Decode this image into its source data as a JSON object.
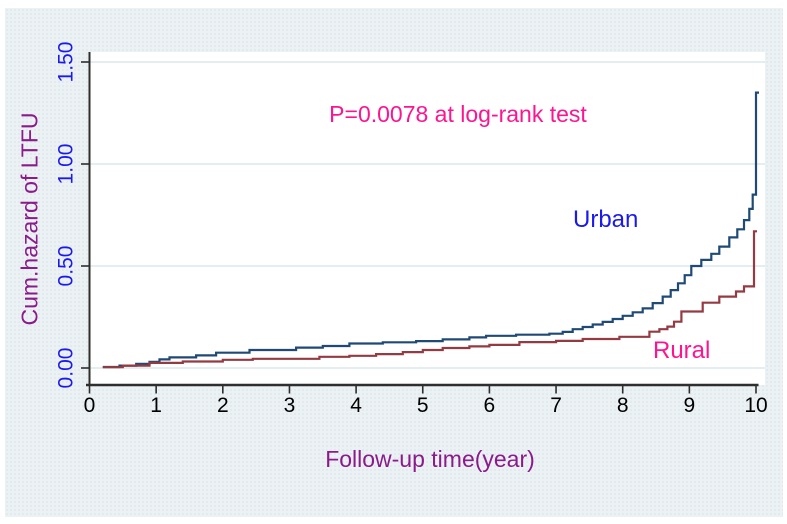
{
  "chart_data": {
    "type": "line",
    "line_style": "step-after",
    "annotation": "P=0.0078 at log-rank test",
    "xlabel": "Follow-up time(year)",
    "ylabel": "Cum.hazard of LTFU",
    "xlim": [
      0,
      10.2
    ],
    "ylim": [
      0,
      1.5
    ],
    "grid": "horizontal-at-y-ticks",
    "legend": "inline-text-labels",
    "x_ticks": {
      "values": [
        0,
        1,
        2,
        3,
        4,
        5,
        6,
        7,
        8,
        9,
        10
      ],
      "labels": [
        "0",
        "1",
        "2",
        "3",
        "4",
        "5",
        "6",
        "7",
        "8",
        "9",
        "10"
      ]
    },
    "y_ticks": {
      "values": [
        0,
        0.5,
        1.0,
        1.5
      ],
      "labels": [
        "0.00",
        "0.50",
        "1.00",
        "1.50"
      ]
    },
    "series": [
      {
        "name": "Urban",
        "color": "#1f4a75",
        "label_color": "#1a1aee",
        "points": [
          [
            0.2,
            0.005
          ],
          [
            0.45,
            0.012
          ],
          [
            0.7,
            0.02
          ],
          [
            0.9,
            0.03
          ],
          [
            1.05,
            0.042
          ],
          [
            1.2,
            0.052
          ],
          [
            1.6,
            0.062
          ],
          [
            1.9,
            0.075
          ],
          [
            2.4,
            0.088
          ],
          [
            3.1,
            0.1
          ],
          [
            3.5,
            0.108
          ],
          [
            3.9,
            0.12
          ],
          [
            4.4,
            0.126
          ],
          [
            4.9,
            0.132
          ],
          [
            5.3,
            0.14
          ],
          [
            5.7,
            0.15
          ],
          [
            5.95,
            0.158
          ],
          [
            6.4,
            0.163
          ],
          [
            6.9,
            0.168
          ],
          [
            7.1,
            0.177
          ],
          [
            7.25,
            0.19
          ],
          [
            7.4,
            0.201
          ],
          [
            7.55,
            0.213
          ],
          [
            7.7,
            0.226
          ],
          [
            7.85,
            0.24
          ],
          [
            8.0,
            0.256
          ],
          [
            8.15,
            0.273
          ],
          [
            8.3,
            0.292
          ],
          [
            8.45,
            0.318
          ],
          [
            8.6,
            0.35
          ],
          [
            8.72,
            0.382
          ],
          [
            8.83,
            0.415
          ],
          [
            8.93,
            0.455
          ],
          [
            9.03,
            0.5
          ],
          [
            9.18,
            0.53
          ],
          [
            9.33,
            0.56
          ],
          [
            9.45,
            0.595
          ],
          [
            9.6,
            0.64
          ],
          [
            9.72,
            0.68
          ],
          [
            9.82,
            0.725
          ],
          [
            9.9,
            0.78
          ],
          [
            9.95,
            0.85
          ],
          [
            10.0,
            1.35
          ]
        ]
      },
      {
        "name": "Rural",
        "color": "#943a42",
        "label_color": "#ff1490",
        "points": [
          [
            0.2,
            0.004
          ],
          [
            0.5,
            0.012
          ],
          [
            0.9,
            0.025
          ],
          [
            1.4,
            0.032
          ],
          [
            2.0,
            0.04
          ],
          [
            2.45,
            0.045
          ],
          [
            3.45,
            0.055
          ],
          [
            3.9,
            0.06
          ],
          [
            4.3,
            0.068
          ],
          [
            4.7,
            0.078
          ],
          [
            5.0,
            0.088
          ],
          [
            5.3,
            0.098
          ],
          [
            5.7,
            0.106
          ],
          [
            6.0,
            0.113
          ],
          [
            6.45,
            0.127
          ],
          [
            7.0,
            0.133
          ],
          [
            7.4,
            0.142
          ],
          [
            7.95,
            0.153
          ],
          [
            8.4,
            0.178
          ],
          [
            8.55,
            0.19
          ],
          [
            8.67,
            0.203
          ],
          [
            8.77,
            0.227
          ],
          [
            8.88,
            0.277
          ],
          [
            9.2,
            0.32
          ],
          [
            9.45,
            0.35
          ],
          [
            9.7,
            0.375
          ],
          [
            9.82,
            0.4
          ],
          [
            9.97,
            0.67
          ]
        ]
      }
    ]
  },
  "colors": {
    "outer_background": "#ffffff",
    "panel_background": "#ecf1f4",
    "plot_background": "#ffffff",
    "gridline": "#dce9ec",
    "axis": "#2e2e2e",
    "x_tick_label": "#000000",
    "y_tick_label": "#1a1aee",
    "axis_title": "#8b1a8b",
    "annotation": "#ff1490"
  }
}
